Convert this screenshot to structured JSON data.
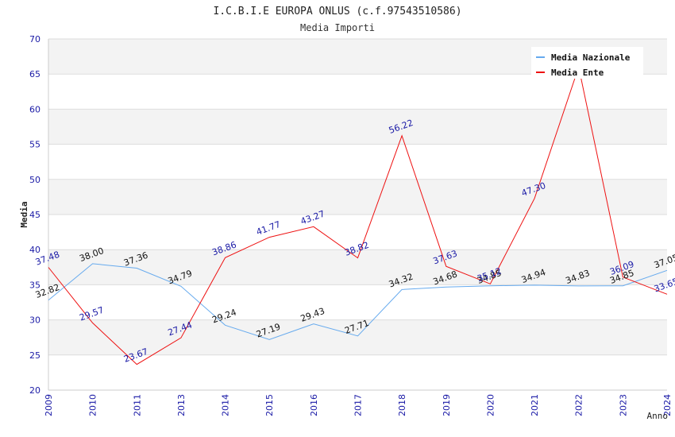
{
  "chart_data": {
    "type": "line",
    "title": "I.C.B.I.E EUROPA ONLUS (c.f.97543510586)",
    "subtitle": "Media Importi",
    "xlabel": "Anno",
    "ylabel": "Media",
    "ylim": [
      20,
      70
    ],
    "yticks": [
      20,
      25,
      30,
      35,
      40,
      45,
      50,
      55,
      60,
      65,
      70
    ],
    "categories": [
      "2009",
      "2010",
      "2011",
      "2013",
      "2014",
      "2015",
      "2016",
      "2017",
      "2018",
      "2019",
      "2020",
      "2021",
      "2022",
      "2023",
      "2024"
    ],
    "legend_position": "top-right",
    "grid": true,
    "series": [
      {
        "name": "Media Nazionale",
        "color": "#66aaee",
        "label_color": "#111111",
        "values": [
          32.82,
          38.0,
          37.36,
          34.79,
          29.24,
          27.19,
          29.43,
          27.71,
          34.32,
          34.68,
          34.85,
          34.94,
          34.83,
          34.85,
          37.05
        ]
      },
      {
        "name": "Media Ente",
        "color": "#ee1111",
        "label_color": "#1a1aa6",
        "values": [
          37.48,
          29.57,
          23.67,
          27.44,
          38.86,
          41.77,
          43.27,
          38.82,
          56.22,
          37.63,
          35.12,
          47.3,
          66.0,
          36.09,
          33.65
        ]
      }
    ]
  }
}
